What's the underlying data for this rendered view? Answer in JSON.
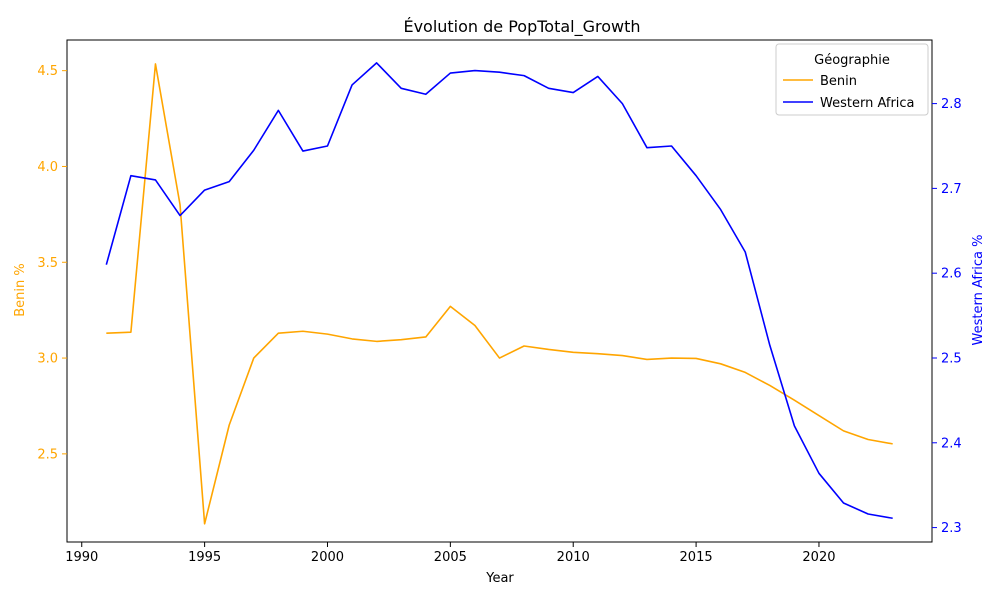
{
  "chart_data": {
    "type": "line",
    "title": "Évolution de PopTotal_Growth",
    "xlabel": "Year",
    "ylabel_left": "Benin %",
    "ylabel_right": "Western Africa %",
    "legend_title": "Géographie",
    "legend_position": "top-right",
    "grid": false,
    "xlim": [
      1989.4,
      2024.6
    ],
    "ylim_left": [
      2.04,
      4.66
    ],
    "ylim_right": [
      2.283,
      2.875
    ],
    "x_ticks": [
      1990,
      1995,
      2000,
      2005,
      2010,
      2015,
      2020
    ],
    "x_tick_labels": [
      "1990",
      "1995",
      "2000",
      "2005",
      "2010",
      "2015",
      "2020"
    ],
    "y_ticks_left": [
      2.5,
      3.0,
      3.5,
      4.0,
      4.5
    ],
    "y_tick_labels_left": [
      "2.5",
      "3.0",
      "3.5",
      "4.0",
      "4.5"
    ],
    "y_ticks_right": [
      2.3,
      2.4,
      2.5,
      2.6,
      2.7,
      2.8
    ],
    "y_tick_labels_right": [
      "2.3",
      "2.4",
      "2.5",
      "2.6",
      "2.7",
      "2.8"
    ],
    "x": [
      1991,
      1992,
      1993,
      1994,
      1995,
      1996,
      1997,
      1998,
      1999,
      2000,
      2001,
      2002,
      2003,
      2004,
      2005,
      2006,
      2007,
      2008,
      2009,
      2010,
      2011,
      2012,
      2013,
      2014,
      2015,
      2016,
      2017,
      2018,
      2019,
      2020,
      2021,
      2022,
      2023
    ],
    "series": [
      {
        "name": "Benin",
        "axis": "left",
        "color": "#ffa500",
        "values": [
          3.13,
          3.135,
          4.535,
          3.8,
          2.135,
          2.65,
          3.0,
          3.13,
          3.14,
          3.125,
          3.1,
          3.087,
          3.096,
          3.11,
          3.27,
          3.17,
          3.0,
          3.063,
          3.045,
          3.03,
          3.023,
          3.013,
          2.993,
          3.0,
          2.998,
          2.97,
          2.925,
          2.857,
          2.78,
          2.7,
          2.62,
          2.575,
          2.552
        ]
      },
      {
        "name": "Western Africa",
        "axis": "right",
        "color": "#0000ff",
        "values": [
          2.61,
          2.715,
          2.71,
          2.668,
          2.698,
          2.708,
          2.745,
          2.792,
          2.744,
          2.75,
          2.822,
          2.848,
          2.818,
          2.811,
          2.836,
          2.839,
          2.837,
          2.833,
          2.818,
          2.813,
          2.832,
          2.8,
          2.748,
          2.75,
          2.715,
          2.675,
          2.625,
          2.515,
          2.42,
          2.364,
          2.329,
          2.316,
          2.311
        ]
      }
    ]
  }
}
